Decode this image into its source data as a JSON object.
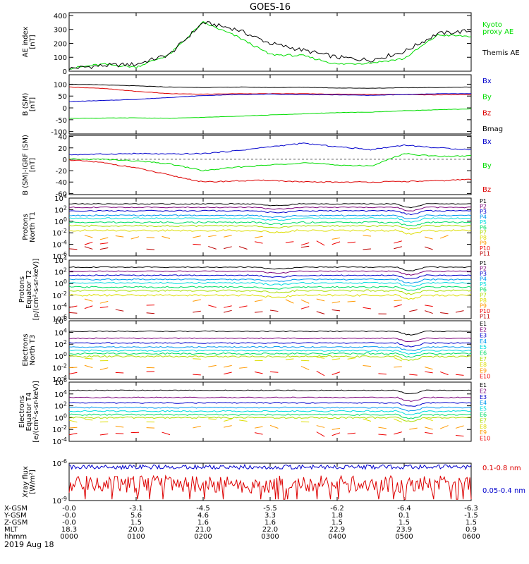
{
  "title": "GOES-16",
  "date_label": "2019 Aug 18",
  "colors": {
    "black": "#000000",
    "red": "#dd0000",
    "green": "#00dd00",
    "blue": "#0000cc",
    "pcolors": [
      "#000000",
      "#7a007a",
      "#0000cc",
      "#0099ee",
      "#00dddd",
      "#00dd66",
      "#aadd00",
      "#dddd00",
      "#ff9900",
      "#ee0000",
      "#bb0000"
    ]
  },
  "time_axis": {
    "rows": [
      {
        "label": "X-GSM",
        "values": [
          "-0.0",
          "-3.1",
          "-4.5",
          "-5.5",
          "-6.2",
          "-6.4",
          "-6.3"
        ]
      },
      {
        "label": "Y-GSM",
        "values": [
          "-0.0",
          "5.6",
          "4.6",
          "3.3",
          "1.8",
          "0.1",
          "-1.5"
        ]
      },
      {
        "label": "Z-GSM",
        "values": [
          "-0.0",
          "1.5",
          "1.6",
          "1.6",
          "1.5",
          "1.5",
          "1.5"
        ]
      },
      {
        "label": "MLT",
        "values": [
          "18.3",
          "20.0",
          "21.0",
          "22.0",
          "22.9",
          "23.9",
          "0.9"
        ]
      },
      {
        "label": "hhmm",
        "values": [
          "0000",
          "0100",
          "0200",
          "0300",
          "0400",
          "0500",
          "0600"
        ]
      }
    ]
  },
  "panels": [
    {
      "id": "ae",
      "ylabel": [
        "AE index",
        "[nT]"
      ],
      "yscale": "linear",
      "ylim": [
        0,
        420
      ],
      "ticks": [
        "0",
        "100",
        "200",
        "300",
        "400"
      ],
      "legend": [
        {
          "text": "Kyoto",
          "color": "#00dd00"
        },
        {
          "text": "proxy AE",
          "color": "#00dd00"
        },
        {
          "text": "Themis AE",
          "color": "#000000"
        }
      ]
    },
    {
      "id": "bsm",
      "ylabel": [
        "B (SM)",
        "[nT]"
      ],
      "yscale": "linear",
      "ylim": [
        -110,
        140
      ],
      "ticks": [
        "-100",
        "-50",
        "0",
        "50",
        "100"
      ],
      "legend": [
        {
          "text": "Bx",
          "color": "#0000cc"
        },
        {
          "text": "By",
          "color": "#00dd00"
        },
        {
          "text": "Bz",
          "color": "#dd0000"
        },
        {
          "text": "Bmag",
          "color": "#000000"
        }
      ]
    },
    {
      "id": "bigrf",
      "ylabel": [
        "B (SM)-IGRF (SM)",
        "[nT]"
      ],
      "yscale": "linear",
      "ylim": [
        -62,
        42
      ],
      "ticks": [
        "-60",
        "-40",
        "-20",
        "0",
        "20",
        "40"
      ],
      "legend": [
        {
          "text": "Bx",
          "color": "#0000cc"
        },
        {
          "text": "By",
          "color": "#00dd00"
        },
        {
          "text": "Bz",
          "color": "#dd0000"
        }
      ]
    },
    {
      "id": "pt1",
      "ylabel": [
        "Protons",
        "North T1"
      ],
      "yscale": "log",
      "ylim": [
        -6,
        4
      ],
      "ticks": [
        "10^-6",
        "10^-4",
        "10^-2",
        "10^0",
        "10^2",
        "10^4"
      ],
      "legend": [
        "P1",
        "P2",
        "P3",
        "P4",
        "P5",
        "P6",
        "P7",
        "P8",
        "P9",
        "P10",
        "P11"
      ]
    },
    {
      "id": "pt2",
      "ylabel": [
        "Protons",
        "Equator T2",
        "[p/(cm²-s-sr-keV)]"
      ],
      "yscale": "log",
      "ylim": [
        -6,
        4
      ],
      "ticks": [
        "10^-6",
        "10^-4",
        "10^-2",
        "10^0",
        "10^2",
        "10^4"
      ],
      "legend": [
        "P1",
        "P2",
        "P3",
        "P4",
        "P5",
        "P6",
        "P7",
        "P8",
        "P9",
        "P10",
        "P11"
      ]
    },
    {
      "id": "et3",
      "ylabel": [
        "Electrons",
        "North T3"
      ],
      "yscale": "log",
      "ylim": [
        -4,
        6
      ],
      "ticks": [
        "10^-4",
        "10^-2",
        "10^0",
        "10^2",
        "10^4",
        "10^6"
      ],
      "legend": [
        "E1",
        "E2",
        "E3",
        "E4",
        "E5",
        "E6",
        "E7",
        "E8",
        "E9",
        "E10"
      ]
    },
    {
      "id": "et4",
      "ylabel": [
        "Electrons",
        "Equator T4",
        "[e/(cm²-s-sr-keV)]"
      ],
      "yscale": "log",
      "ylim": [
        -4,
        6
      ],
      "ticks": [
        "10^-4",
        "10^-2",
        "10^0",
        "10^2",
        "10^4",
        "10^6"
      ],
      "legend": [
        "E1",
        "E2",
        "E3",
        "E4",
        "E5",
        "E6",
        "E7",
        "E8",
        "E9",
        "E10"
      ]
    },
    {
      "id": "xray",
      "ylabel": [
        "Xray flux",
        "[W/m²]"
      ],
      "yscale": "log",
      "ylim": [
        -9,
        -6
      ],
      "ticks": [
        "10^-9",
        "10^-6"
      ],
      "legend": [
        {
          "text": "0.1-0.8 nm",
          "color": "#dd0000"
        },
        {
          "text": "0.05-0.4 nm",
          "color": "#0000cc"
        }
      ]
    }
  ],
  "chart_data": {
    "type": "line",
    "title": "GOES-16",
    "x_hours": [
      0,
      0.5,
      1,
      1.5,
      2,
      2.5,
      3,
      3.5,
      4,
      4.5,
      5,
      5.5,
      6
    ],
    "ae": {
      "themis": [
        20,
        40,
        50,
        120,
        350,
        300,
        200,
        150,
        100,
        80,
        140,
        270,
        290
      ],
      "kyoto": [
        20,
        50,
        30,
        120,
        350,
        250,
        120,
        110,
        50,
        60,
        90,
        260,
        250
      ]
    },
    "b_sm": {
      "bmag": [
        100,
        97,
        93,
        88,
        86,
        88,
        86,
        87,
        84,
        83,
        85,
        86,
        88
      ],
      "bz": [
        88,
        82,
        70,
        60,
        58,
        60,
        60,
        60,
        58,
        57,
        56,
        55,
        56
      ],
      "bx": [
        27,
        31,
        36,
        44,
        52,
        56,
        58,
        56,
        55,
        53,
        56,
        60,
        60
      ],
      "by": [
        -44,
        -43,
        -42,
        -44,
        -40,
        -35,
        -30,
        -25,
        -20,
        -18,
        -12,
        -8,
        -4
      ]
    },
    "b_igrf": {
      "bx": [
        8,
        9,
        10,
        9,
        10,
        15,
        22,
        28,
        22,
        17,
        25,
        20,
        17
      ],
      "by": [
        0,
        0,
        -3,
        -8,
        -20,
        -14,
        -10,
        -6,
        -10,
        -12,
        10,
        5,
        6
      ],
      "bz": [
        -1,
        -6,
        -15,
        -28,
        -40,
        -38,
        -37,
        -40,
        -40,
        -40,
        -39,
        -38,
        -35
      ]
    },
    "protons_t1_log": [
      3.0,
      2.4,
      1.8,
      1.0,
      0.5,
      -0.2,
      -0.8,
      -1.6,
      -2.8,
      -3.8,
      -4.6
    ],
    "protons_t2_log": [
      2.8,
      2.1,
      1.4,
      0.7,
      0.1,
      -0.6,
      -1.2,
      -2.0,
      -3.0,
      -4.0,
      -4.8
    ],
    "electrons_t3_log": [
      4.2,
      3.0,
      2.2,
      1.5,
      0.9,
      0.4,
      -0.1,
      -0.5,
      -2.0,
      -3.0
    ],
    "electrons_t4_log": [
      4.6,
      3.4,
      2.5,
      1.7,
      1.1,
      0.5,
      0.0,
      -0.4,
      -1.7,
      -2.8
    ],
    "xray": {
      "long_log": -7.7,
      "short_log": -6.3
    },
    "ylim": [
      0,
      420
    ]
  }
}
